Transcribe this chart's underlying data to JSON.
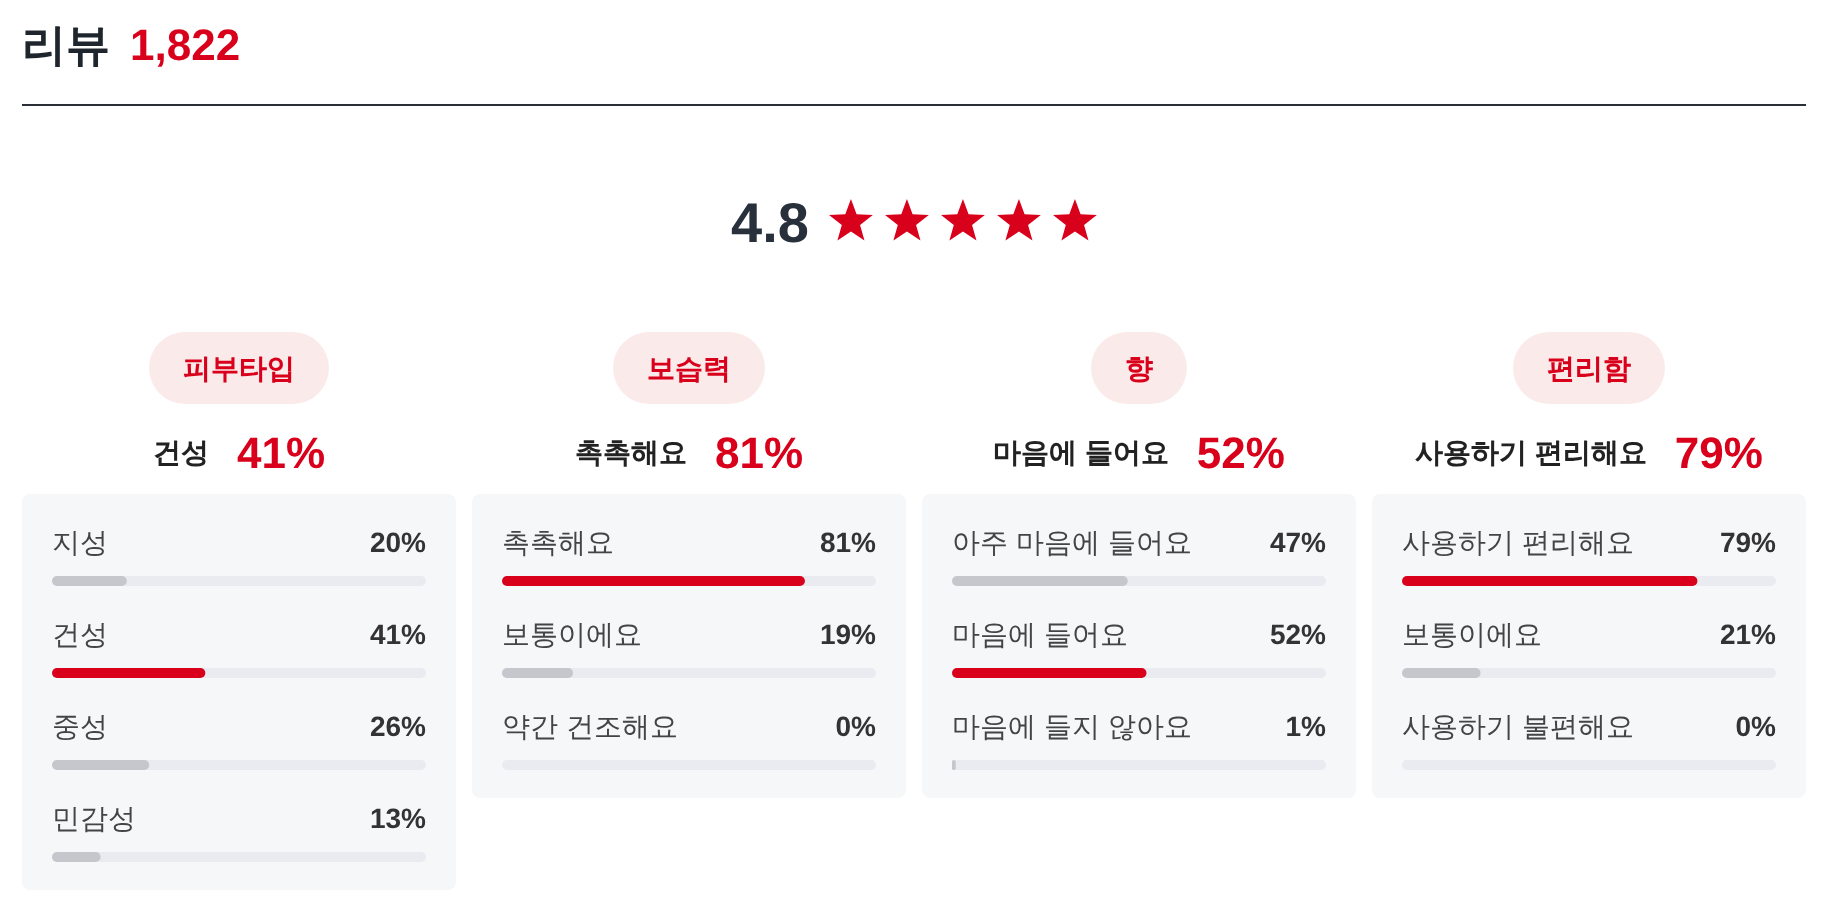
{
  "chart_data": [
    {
      "type": "other",
      "title": "리뷰",
      "annotations": [
        "1,822",
        "4.8"
      ]
    },
    {
      "type": "bar",
      "orientation": "horizontal",
      "title": "피부타입",
      "subtitle": "건성",
      "annotations": [
        "41%"
      ],
      "categories": [
        "지성",
        "건성",
        "중성",
        "민감성"
      ],
      "values": [
        20,
        41,
        26,
        13
      ],
      "value_labels": [
        "20%",
        "41%",
        "26%",
        "13%"
      ],
      "colors": [
        "#c5c7cd",
        "#d9001b",
        "#c5c7cd",
        "#c5c7cd"
      ],
      "xlim": [
        0,
        100
      ],
      "tick_labels": "y"
    },
    {
      "type": "bar",
      "orientation": "horizontal",
      "title": "보습력",
      "subtitle": "촉촉해요",
      "annotations": [
        "81%"
      ],
      "categories": [
        "촉촉해요",
        "보통이에요",
        "약간 건조해요"
      ],
      "values": [
        81,
        19,
        0
      ],
      "value_labels": [
        "81%",
        "19%",
        "0%"
      ],
      "colors": [
        "#d9001b",
        "#c5c7cd",
        "#c5c7cd"
      ],
      "xlim": [
        0,
        100
      ],
      "tick_labels": "y"
    },
    {
      "type": "bar",
      "orientation": "horizontal",
      "title": "향",
      "subtitle": "마음에 들어요",
      "annotations": [
        "52%"
      ],
      "categories": [
        "아주 마음에 들어요",
        "마음에 들어요",
        "마음에 들지 않아요"
      ],
      "values": [
        47,
        52,
        1
      ],
      "value_labels": [
        "47%",
        "52%",
        "1%"
      ],
      "colors": [
        "#c5c7cd",
        "#d9001b",
        "#c5c7cd"
      ],
      "xlim": [
        0,
        100
      ],
      "tick_labels": "y"
    },
    {
      "type": "bar",
      "orientation": "horizontal",
      "title": "편리함",
      "subtitle": "사용하기 편리해요",
      "annotations": [
        "79%"
      ],
      "categories": [
        "사용하기 편리해요",
        "보통이에요",
        "사용하기 불편해요"
      ],
      "values": [
        79,
        21,
        0
      ],
      "value_labels": [
        "79%",
        "21%",
        "0%"
      ],
      "colors": [
        "#d9001b",
        "#c5c7cd",
        "#c5c7cd"
      ],
      "xlim": [
        0,
        100
      ],
      "tick_labels": "y"
    }
  ]
}
